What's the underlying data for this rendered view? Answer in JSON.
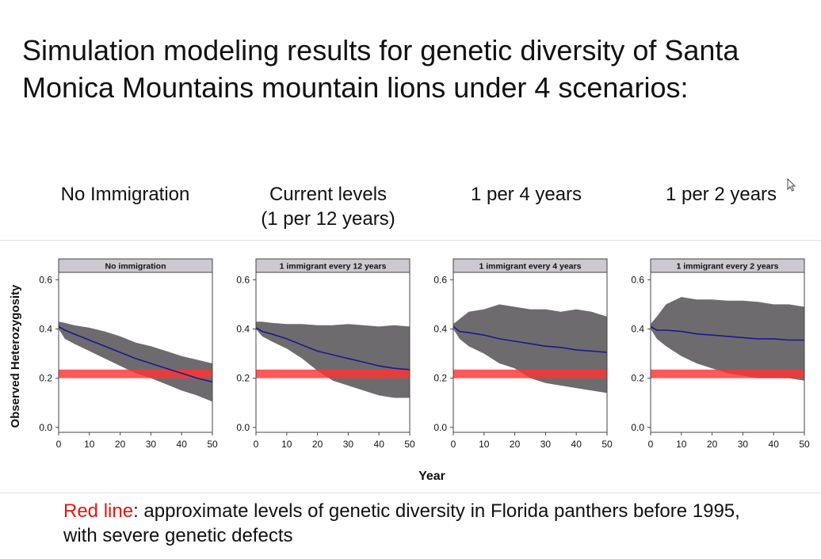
{
  "slide": {
    "title": "Simulation modeling results for genetic diversity of Santa Monica Mountains mountain lions under 4 scenarios:",
    "scenario_labels": [
      {
        "line1": "No Immigration",
        "line2": ""
      },
      {
        "line1": "Current levels",
        "line2": "(1 per 12 years)"
      },
      {
        "line1": "1 per 4 years",
        "line2": ""
      },
      {
        "line1": "1 per 2 years",
        "line2": ""
      }
    ],
    "footnote": {
      "highlight": "Red line",
      "rest": ": approximate levels of genetic diversity in Florida panthers before 1995, with severe genetic defects"
    },
    "cursor_icon": "mouse-pointer-icon"
  },
  "chart_data": {
    "type": "line",
    "ylabel": "Observed Heterozygosity",
    "xlabel": "Year",
    "x_ticks": [
      0,
      10,
      20,
      30,
      40,
      50
    ],
    "y_ticks": [
      0.0,
      0.2,
      0.4,
      0.6
    ],
    "y_tick_labels": [
      "0.0",
      "0.2",
      "0.4",
      "0.6"
    ],
    "xlim": [
      0,
      50
    ],
    "ylim": [
      -0.02,
      0.63
    ],
    "colors": {
      "mean": "#1a1a8c",
      "band": "#6e6b6e",
      "reference": "#ff3333",
      "strip": "#cdc9d0"
    },
    "reference_band": {
      "y_low": 0.2,
      "y_high": 0.235
    },
    "panels": [
      {
        "title": "No immigration",
        "x": [
          0,
          2,
          5,
          10,
          15,
          20,
          25,
          30,
          35,
          40,
          45,
          50
        ],
        "mean": [
          0.41,
          0.395,
          0.38,
          0.355,
          0.33,
          0.305,
          0.28,
          0.26,
          0.24,
          0.22,
          0.2,
          0.185
        ],
        "upper": [
          0.43,
          0.425,
          0.415,
          0.405,
          0.39,
          0.37,
          0.345,
          0.33,
          0.31,
          0.29,
          0.275,
          0.26
        ],
        "lower": [
          0.4,
          0.36,
          0.34,
          0.31,
          0.28,
          0.25,
          0.22,
          0.2,
          0.175,
          0.15,
          0.13,
          0.105
        ]
      },
      {
        "title": "1 immigrant every 12 years",
        "x": [
          0,
          2,
          5,
          10,
          15,
          20,
          25,
          30,
          35,
          40,
          45,
          50
        ],
        "mean": [
          0.405,
          0.39,
          0.38,
          0.36,
          0.335,
          0.31,
          0.295,
          0.28,
          0.265,
          0.25,
          0.24,
          0.235
        ],
        "upper": [
          0.43,
          0.43,
          0.425,
          0.42,
          0.42,
          0.415,
          0.415,
          0.42,
          0.415,
          0.41,
          0.415,
          0.41
        ],
        "lower": [
          0.4,
          0.37,
          0.35,
          0.32,
          0.28,
          0.23,
          0.19,
          0.17,
          0.15,
          0.13,
          0.12,
          0.12
        ]
      },
      {
        "title": "1 immigrant every 4 years",
        "x": [
          0,
          2,
          5,
          10,
          15,
          20,
          25,
          30,
          35,
          40,
          45,
          50
        ],
        "mean": [
          0.41,
          0.39,
          0.385,
          0.375,
          0.36,
          0.35,
          0.34,
          0.33,
          0.325,
          0.315,
          0.31,
          0.305
        ],
        "upper": [
          0.42,
          0.44,
          0.47,
          0.48,
          0.5,
          0.49,
          0.48,
          0.48,
          0.47,
          0.48,
          0.47,
          0.45
        ],
        "lower": [
          0.4,
          0.36,
          0.33,
          0.3,
          0.26,
          0.24,
          0.2,
          0.18,
          0.17,
          0.16,
          0.15,
          0.14
        ]
      },
      {
        "title": "1 immigrant every 2 years",
        "x": [
          0,
          2,
          5,
          10,
          15,
          20,
          25,
          30,
          35,
          40,
          45,
          50
        ],
        "mean": [
          0.41,
          0.395,
          0.395,
          0.39,
          0.38,
          0.375,
          0.37,
          0.365,
          0.36,
          0.36,
          0.355,
          0.355
        ],
        "upper": [
          0.42,
          0.45,
          0.5,
          0.53,
          0.52,
          0.52,
          0.515,
          0.515,
          0.51,
          0.5,
          0.5,
          0.49
        ],
        "lower": [
          0.4,
          0.36,
          0.33,
          0.29,
          0.26,
          0.24,
          0.22,
          0.21,
          0.2,
          0.2,
          0.2,
          0.19
        ]
      }
    ]
  }
}
